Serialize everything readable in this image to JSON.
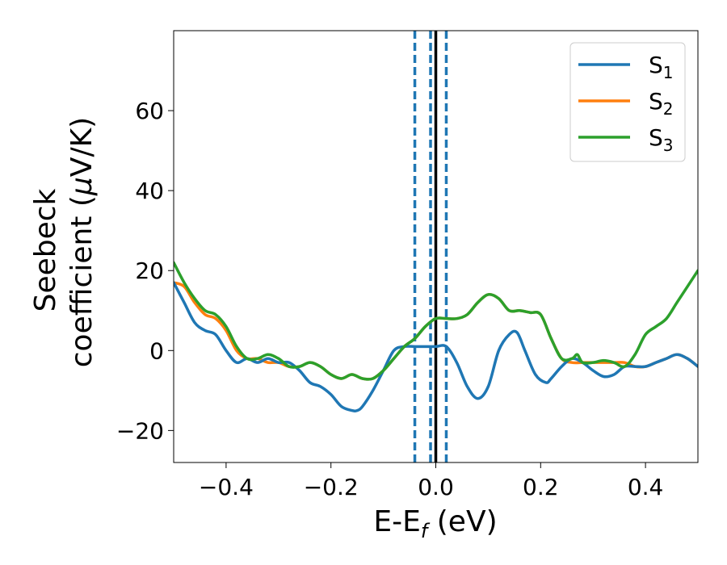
{
  "chart_data": {
    "type": "line",
    "xlabel": "E-E",
    "xlabel_sub": "f",
    "xlabel_unit": " (eV)",
    "ylabel_line1": "Seebeck",
    "ylabel_line2": "coefficient  (",
    "ylabel_mu": "μ",
    "ylabel_unit": "V/K)",
    "xlim": [
      -0.5,
      0.5
    ],
    "ylim": [
      -28,
      80
    ],
    "x_ticks": [
      -0.4,
      -0.2,
      0.0,
      0.2,
      0.4
    ],
    "x_tick_labels": [
      "−0.4",
      "−0.2",
      "0.0",
      "0.2",
      "0.4"
    ],
    "y_ticks": [
      -20,
      0,
      20,
      40,
      60
    ],
    "y_tick_labels": [
      "−20",
      "0",
      "20",
      "40",
      "60"
    ],
    "legend_position": "top-right",
    "vertical_lines": [
      {
        "x": -0.04,
        "style": "dashed",
        "color": "#1f77b4"
      },
      {
        "x": -0.01,
        "style": "dashed",
        "color": "#1f77b4"
      },
      {
        "x": 0.0,
        "style": "solid",
        "color": "#000000"
      },
      {
        "x": 0.02,
        "style": "dashed",
        "color": "#1f77b4"
      }
    ],
    "series": [
      {
        "name": "S",
        "sub": "1",
        "color": "#1f77b4",
        "x": [
          -0.5,
          -0.48,
          -0.46,
          -0.44,
          -0.42,
          -0.4,
          -0.38,
          -0.36,
          -0.34,
          -0.32,
          -0.3,
          -0.28,
          -0.26,
          -0.24,
          -0.22,
          -0.2,
          -0.18,
          -0.16,
          -0.15,
          -0.14,
          -0.12,
          -0.1,
          -0.08,
          -0.06,
          -0.04,
          -0.02,
          0.0,
          0.02,
          0.04,
          0.06,
          0.08,
          0.1,
          0.12,
          0.14,
          0.155,
          0.17,
          0.19,
          0.21,
          0.22,
          0.24,
          0.26,
          0.28,
          0.3,
          0.32,
          0.34,
          0.36,
          0.38,
          0.4,
          0.42,
          0.44,
          0.46,
          0.48,
          0.5
        ],
        "y": [
          17,
          12,
          7,
          5,
          4,
          0,
          -3,
          -2,
          -3,
          -2,
          -3,
          -3,
          -5,
          -8,
          -9,
          -11,
          -14,
          -15,
          -15,
          -14,
          -10,
          -5,
          0,
          1,
          1,
          1,
          1,
          1,
          -3,
          -9,
          -12,
          -9,
          0,
          4,
          4.5,
          0,
          -6,
          -8,
          -7,
          -4,
          -2,
          -3,
          -5,
          -6.5,
          -6,
          -4,
          -4,
          -4,
          -3,
          -2,
          -1,
          -2,
          -4
        ]
      },
      {
        "name": "S",
        "sub": "2",
        "color": "#ff7f0e",
        "x": [
          -0.5,
          -0.48,
          -0.46,
          -0.44,
          -0.42,
          -0.4,
          -0.38,
          -0.36,
          -0.34,
          -0.32,
          -0.3,
          -0.28,
          -0.26,
          -0.24,
          -0.22,
          -0.2,
          -0.18,
          -0.16,
          -0.14,
          -0.12,
          -0.1,
          -0.08,
          -0.06,
          -0.04,
          -0.02,
          0.0,
          0.02,
          0.04,
          0.06,
          0.08,
          0.1,
          0.12,
          0.14,
          0.16,
          0.18,
          0.2,
          0.22,
          0.24,
          0.26,
          0.28,
          0.3,
          0.32,
          0.34,
          0.36,
          0.38,
          0.4,
          0.42,
          0.44,
          0.46,
          0.48,
          0.5
        ],
        "y": [
          17,
          16,
          12,
          9,
          8,
          5,
          0,
          -2,
          -2,
          -3,
          -3,
          -4,
          -4,
          -3,
          -4,
          -6,
          -7,
          -6,
          -7,
          -7,
          -5,
          -2,
          1,
          3,
          6,
          8,
          8,
          8,
          9,
          12,
          14,
          13,
          10,
          10,
          9.5,
          9,
          3,
          -2,
          -3,
          -3,
          -3,
          -3,
          -3,
          -3,
          -4,
          -4,
          -3,
          -2,
          -1,
          -2,
          -4
        ]
      },
      {
        "name": "S",
        "sub": "3",
        "color": "#2ca02c",
        "x": [
          -0.5,
          -0.48,
          -0.46,
          -0.44,
          -0.42,
          -0.4,
          -0.38,
          -0.36,
          -0.34,
          -0.32,
          -0.3,
          -0.28,
          -0.26,
          -0.24,
          -0.22,
          -0.2,
          -0.18,
          -0.16,
          -0.14,
          -0.12,
          -0.1,
          -0.08,
          -0.06,
          -0.04,
          -0.02,
          0.0,
          0.02,
          0.04,
          0.06,
          0.08,
          0.1,
          0.12,
          0.14,
          0.16,
          0.18,
          0.2,
          0.22,
          0.24,
          0.26,
          0.27,
          0.28,
          0.3,
          0.32,
          0.34,
          0.36,
          0.38,
          0.4,
          0.42,
          0.44,
          0.46,
          0.48,
          0.5
        ],
        "y": [
          22,
          17,
          13,
          10,
          9,
          6,
          1,
          -2,
          -2,
          -1,
          -2,
          -4,
          -4,
          -3,
          -4,
          -6,
          -7,
          -6,
          -7,
          -7,
          -5,
          -2,
          1,
          3,
          6,
          8,
          8,
          8,
          9,
          12,
          14,
          13,
          10,
          10,
          9.5,
          9,
          3,
          -2,
          -2,
          -1,
          -3,
          -3,
          -2.5,
          -3,
          -4,
          -1,
          4,
          6,
          8,
          12,
          16,
          20
        ]
      }
    ]
  }
}
